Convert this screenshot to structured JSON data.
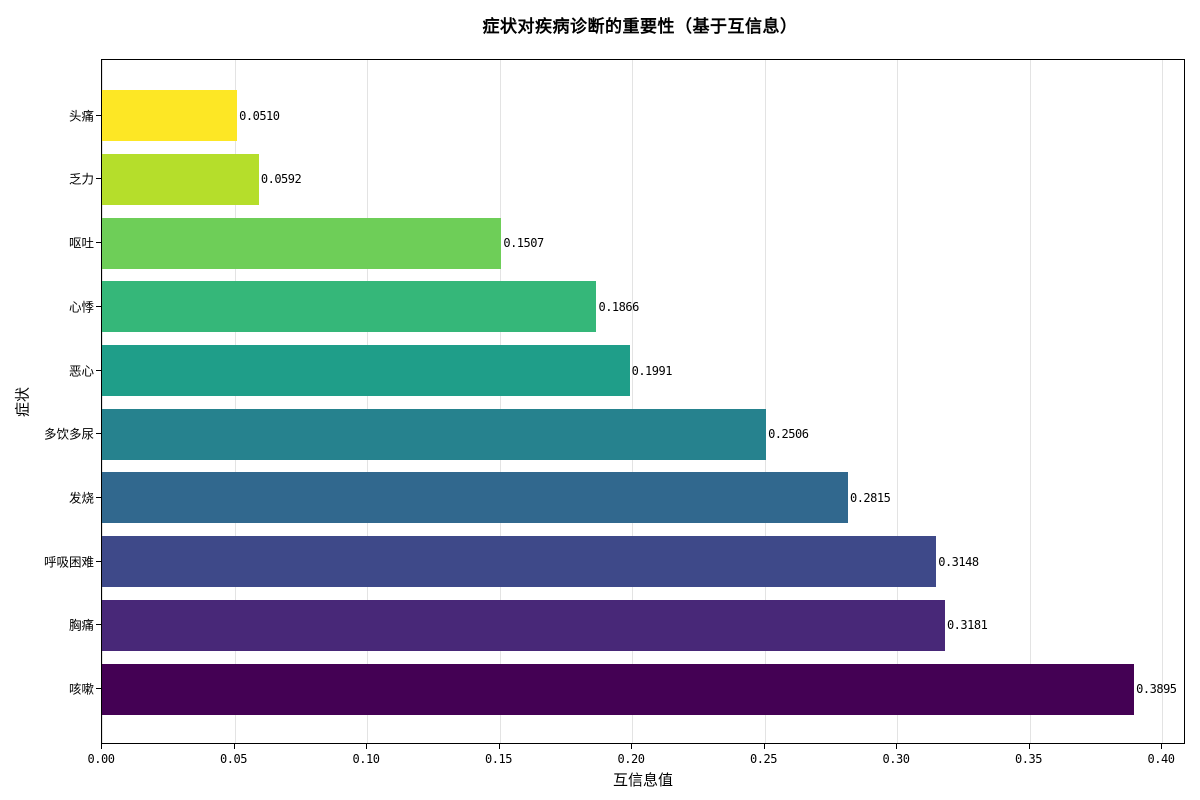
{
  "chart_data": {
    "type": "bar",
    "orientation": "horizontal",
    "title": "症状对疾病诊断的重要性（基于互信息）",
    "xlabel": "互信息值",
    "ylabel": "症状",
    "categories": [
      "咳嗽",
      "胸痛",
      "呼吸困难",
      "发烧",
      "多饮多尿",
      "恶心",
      "心悸",
      "呕吐",
      "乏力",
      "头痛"
    ],
    "values": [
      0.3895,
      0.3181,
      0.3148,
      0.2815,
      0.2506,
      0.1991,
      0.1866,
      0.1507,
      0.0592,
      0.051
    ],
    "value_labels": [
      "0.3895",
      "0.3181",
      "0.3148",
      "0.2815",
      "0.2506",
      "0.1991",
      "0.1866",
      "0.1507",
      "0.0592",
      "0.0510"
    ],
    "colors": [
      "#440154",
      "#482878",
      "#3e4989",
      "#31688e",
      "#26828e",
      "#1f9e89",
      "#35b779",
      "#6ece58",
      "#b5de2b",
      "#fde725"
    ],
    "xlim": [
      0,
      0.41
    ],
    "xticks": [
      0.0,
      0.05,
      0.1,
      0.15,
      0.2,
      0.25,
      0.3,
      0.35,
      0.4
    ],
    "xtick_labels": [
      "0.00",
      "0.05",
      "0.10",
      "0.15",
      "0.20",
      "0.25",
      "0.30",
      "0.35",
      "0.40"
    ],
    "grid": {
      "x": true,
      "y": false
    },
    "legend": null,
    "colormap": "viridis"
  }
}
